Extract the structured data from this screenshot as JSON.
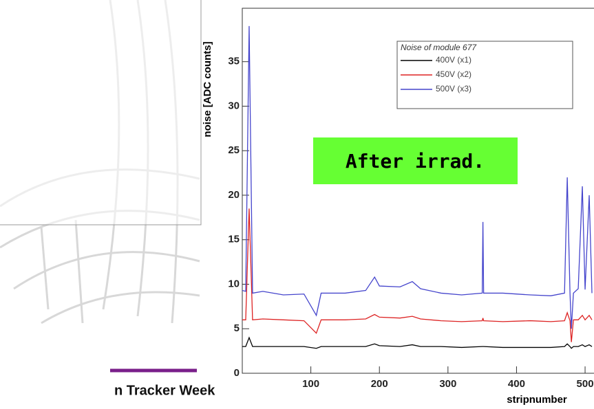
{
  "footer": {
    "text": "n Tracker Week"
  },
  "chart_data": {
    "type": "line",
    "y_label": "noise  [ADC  counts]",
    "x_label": "stripnumber",
    "legend_title": "Noise of module 677",
    "annotation": "After irrad.",
    "annotation_color": "#66ff33",
    "xlim": [
      0,
      512
    ],
    "xticks": [
      100,
      200,
      300,
      400,
      500
    ],
    "ylim": [
      0,
      41
    ],
    "yticks": [
      0,
      5,
      10,
      15,
      20,
      25,
      30,
      35
    ],
    "x": [
      0,
      5,
      10,
      15,
      30,
      60,
      90,
      108,
      115,
      150,
      180,
      193,
      200,
      230,
      248,
      260,
      290,
      320,
      350,
      351,
      352,
      380,
      420,
      450,
      470,
      474,
      478,
      480,
      483,
      490,
      496,
      500,
      506,
      510
    ],
    "series": [
      {
        "name": "400V (x1)",
        "color": "#000000",
        "values": [
          3,
          3,
          4,
          3,
          3,
          3,
          3,
          2.8,
          3,
          3,
          3,
          3.3,
          3.1,
          3,
          3.2,
          3,
          3,
          2.9,
          3,
          3,
          3,
          2.9,
          2.9,
          2.9,
          3,
          3.3,
          3,
          2.8,
          3,
          3,
          3.2,
          3,
          3.2,
          3
        ]
      },
      {
        "name": "450V (x2)",
        "color": "#dd2222",
        "values": [
          6,
          6,
          18.5,
          6,
          6.1,
          6,
          5.9,
          4.5,
          6,
          6,
          6.1,
          6.6,
          6.3,
          6.2,
          6.4,
          6.1,
          5.9,
          5.8,
          5.9,
          6.2,
          5.9,
          5.8,
          5.9,
          5.8,
          5.9,
          6.8,
          5.9,
          3.5,
          6,
          6,
          6.5,
          6,
          6.5,
          6
        ]
      },
      {
        "name": "500V (x3)",
        "color": "#4444cc",
        "values": [
          9.3,
          9.2,
          39,
          9,
          9.2,
          8.8,
          8.9,
          6.5,
          9,
          9,
          9.3,
          10.8,
          9.8,
          9.7,
          10.3,
          9.5,
          9,
          8.8,
          9,
          17,
          9,
          9,
          8.8,
          8.7,
          9,
          22,
          9,
          5,
          9,
          9.5,
          21,
          9.4,
          20,
          9
        ]
      }
    ]
  }
}
